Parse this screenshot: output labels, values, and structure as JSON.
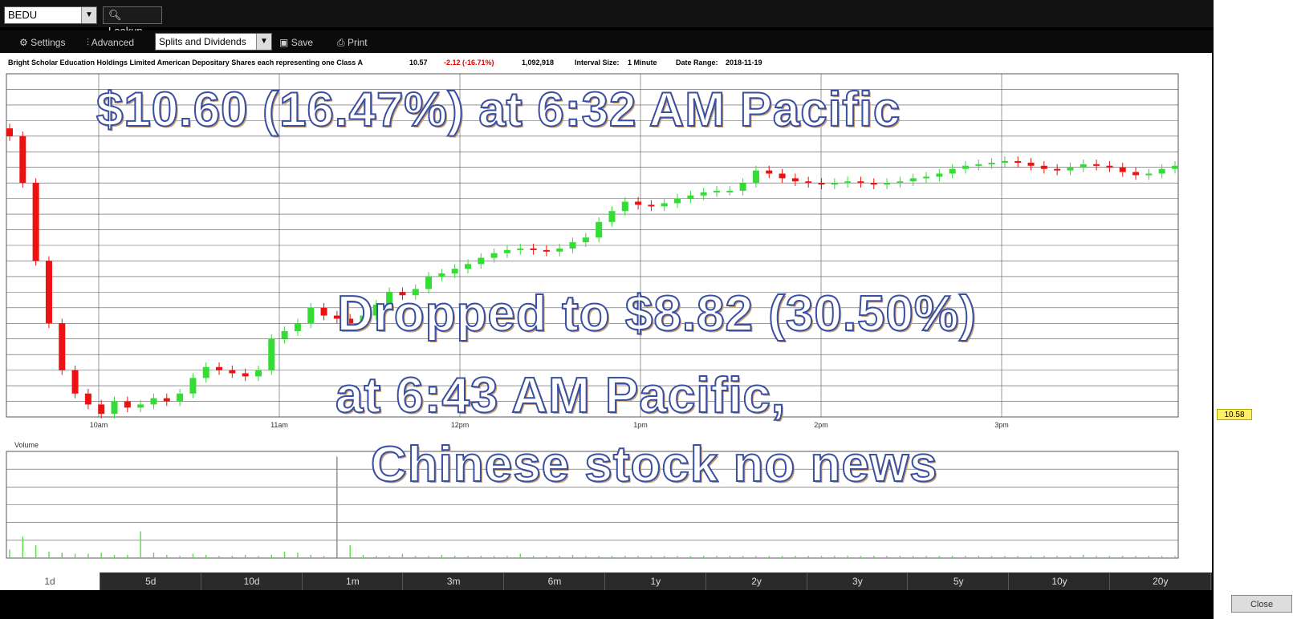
{
  "toolbar": {
    "symbol": "BEDU",
    "lookup_label": "Lookup",
    "settings_label": "Settings",
    "advanced_label": "Advanced",
    "splits_label": "Splits and Dividends",
    "save_label": "Save",
    "print_label": "Print"
  },
  "info": {
    "company": "Bright Scholar Education Holdings Limited American Depositary Shares each representing one Class A",
    "last": "10.57",
    "change": "-2.12 (-16.71%)",
    "volume": "1,092,918",
    "interval_label": "Interval Size:",
    "interval_value": "1 Minute",
    "range_label": "Date Range:",
    "range_value": "2018-11-19"
  },
  "overlay": {
    "line1": "$10.60 (16.47%) at 6:32 AM Pacific",
    "line2": "Dropped to $8.82 (30.50%)",
    "line3": "at 6:43 AM Pacific,",
    "line4": "Chinese stock no news"
  },
  "chart_data": {
    "type": "candlestick",
    "x_ticks": [
      "10am",
      "11am",
      "12pm",
      "1pm",
      "2pm",
      "3pm"
    ],
    "price_close_series": [
      10.6,
      10.3,
      9.8,
      9.4,
      9.1,
      8.95,
      8.88,
      8.82,
      8.9,
      8.86,
      8.88,
      8.92,
      8.9,
      8.95,
      9.05,
      9.12,
      9.1,
      9.08,
      9.06,
      9.1,
      9.3,
      9.35,
      9.4,
      9.5,
      9.45,
      9.43,
      9.4,
      9.45,
      9.52,
      9.6,
      9.58,
      9.62,
      9.7,
      9.72,
      9.75,
      9.78,
      9.82,
      9.85,
      9.87,
      9.88,
      9.87,
      9.86,
      9.88,
      9.92,
      9.95,
      10.05,
      10.12,
      10.18,
      10.16,
      10.15,
      10.17,
      10.2,
      10.22,
      10.24,
      10.25,
      10.25,
      10.3,
      10.38,
      10.36,
      10.33,
      10.31,
      10.3,
      10.29,
      10.3,
      10.31,
      10.3,
      10.29,
      10.3,
      10.31,
      10.33,
      10.34,
      10.36,
      10.39,
      10.41,
      10.42,
      10.43,
      10.44,
      10.43,
      10.41,
      10.39,
      10.38,
      10.4,
      10.42,
      10.41,
      10.4,
      10.37,
      10.35,
      10.36,
      10.39,
      10.41
    ],
    "volume_series": [
      8,
      20,
      12,
      6,
      5,
      4,
      4,
      5,
      3,
      3,
      25,
      5,
      3,
      2,
      4,
      3,
      2,
      2,
      3,
      2,
      3,
      6,
      5,
      3,
      2,
      95,
      12,
      3,
      2,
      2,
      4,
      2,
      2,
      3,
      2,
      2,
      2,
      2,
      2,
      4,
      2,
      2,
      2,
      3,
      2,
      2,
      2,
      2,
      2,
      2,
      2,
      2,
      2,
      2,
      2,
      2,
      2,
      2,
      2,
      2,
      2,
      2,
      2,
      2,
      2,
      2,
      2,
      2,
      2,
      2,
      2,
      2,
      2,
      2,
      2,
      2,
      2,
      2,
      2,
      2,
      2,
      2,
      3,
      2,
      2,
      2,
      2,
      2,
      2,
      2
    ],
    "price_ylim": [
      8.8,
      11.0
    ],
    "volume_ylim": [
      0,
      100
    ],
    "volume_label": "Volume"
  },
  "periods": [
    "1d",
    "5d",
    "10d",
    "1m",
    "3m",
    "6m",
    "1y",
    "2y",
    "3y",
    "5y",
    "10y",
    "20y"
  ],
  "side": {
    "price_tag": "10.58",
    "close_label": "Close"
  }
}
